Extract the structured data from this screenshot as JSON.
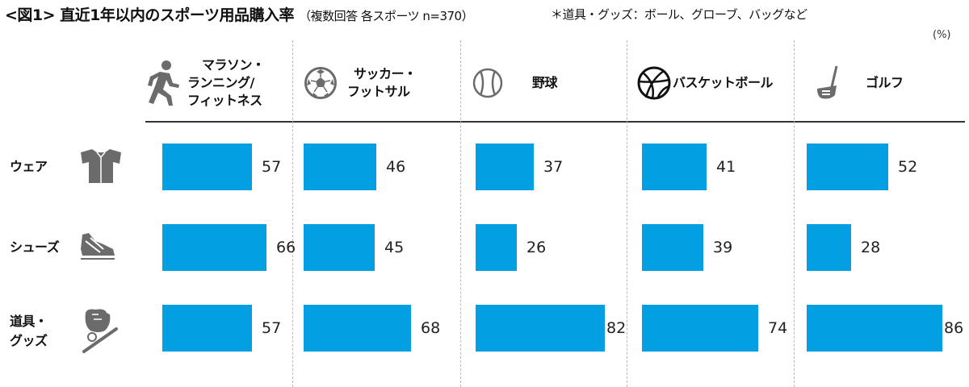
{
  "header": {
    "title": "<図1> 直近1年以内のスポーツ用品購入率",
    "subtitle": "（複数回答  各スポーツ n=370）",
    "note": "＊道具・グッズ：ボール、グローブ、バッグなど",
    "unit": "(%)"
  },
  "columns": [
    {
      "label_lines": [
        "マラソン・",
        "ランニング/",
        "フィットネス"
      ],
      "icon": "runner-icon"
    },
    {
      "label_lines": [
        "サッカー・",
        "フットサル"
      ],
      "icon": "soccer-ball-icon"
    },
    {
      "label_lines": [
        "野球"
      ],
      "icon": "baseball-icon"
    },
    {
      "label_lines": [
        "バスケットボール"
      ],
      "icon": "basketball-icon"
    },
    {
      "label_lines": [
        "ゴルフ"
      ],
      "icon": "golf-club-icon"
    }
  ],
  "rows": [
    {
      "label_lines": [
        "ウェア"
      ],
      "icon": "jersey-icon"
    },
    {
      "label_lines": [
        "シューズ"
      ],
      "icon": "sneaker-icon"
    },
    {
      "label_lines": [
        "道具・",
        "グッズ"
      ],
      "icon": "glove-bat-icon"
    }
  ],
  "colors": {
    "bar": "#039fe3",
    "rule": "#333333",
    "separator": "#b8b8b8",
    "icon": "#6b6b6b"
  },
  "chart_data": {
    "type": "bar",
    "orientation": "horizontal",
    "title": "<図1> 直近1年以内のスポーツ用品購入率",
    "subtitle": "（複数回答  各スポーツ n=370）",
    "note": "＊道具・グッズ：ボール、グローブ、バッグなど",
    "unit": "%",
    "categories": [
      "ウェア",
      "シューズ",
      "道具・グッズ"
    ],
    "series": [
      {
        "name": "マラソン・ランニング/フィットネス",
        "values": [
          57,
          66,
          57
        ]
      },
      {
        "name": "サッカー・フットサル",
        "values": [
          46,
          45,
          68
        ]
      },
      {
        "name": "野球",
        "values": [
          37,
          26,
          82
        ]
      },
      {
        "name": "バスケットボール",
        "values": [
          41,
          39,
          74
        ]
      },
      {
        "name": "ゴルフ",
        "values": [
          52,
          28,
          86
        ]
      }
    ],
    "xlim": [
      0,
      100
    ],
    "grid": false,
    "legend": "column headers (small multiples)"
  }
}
